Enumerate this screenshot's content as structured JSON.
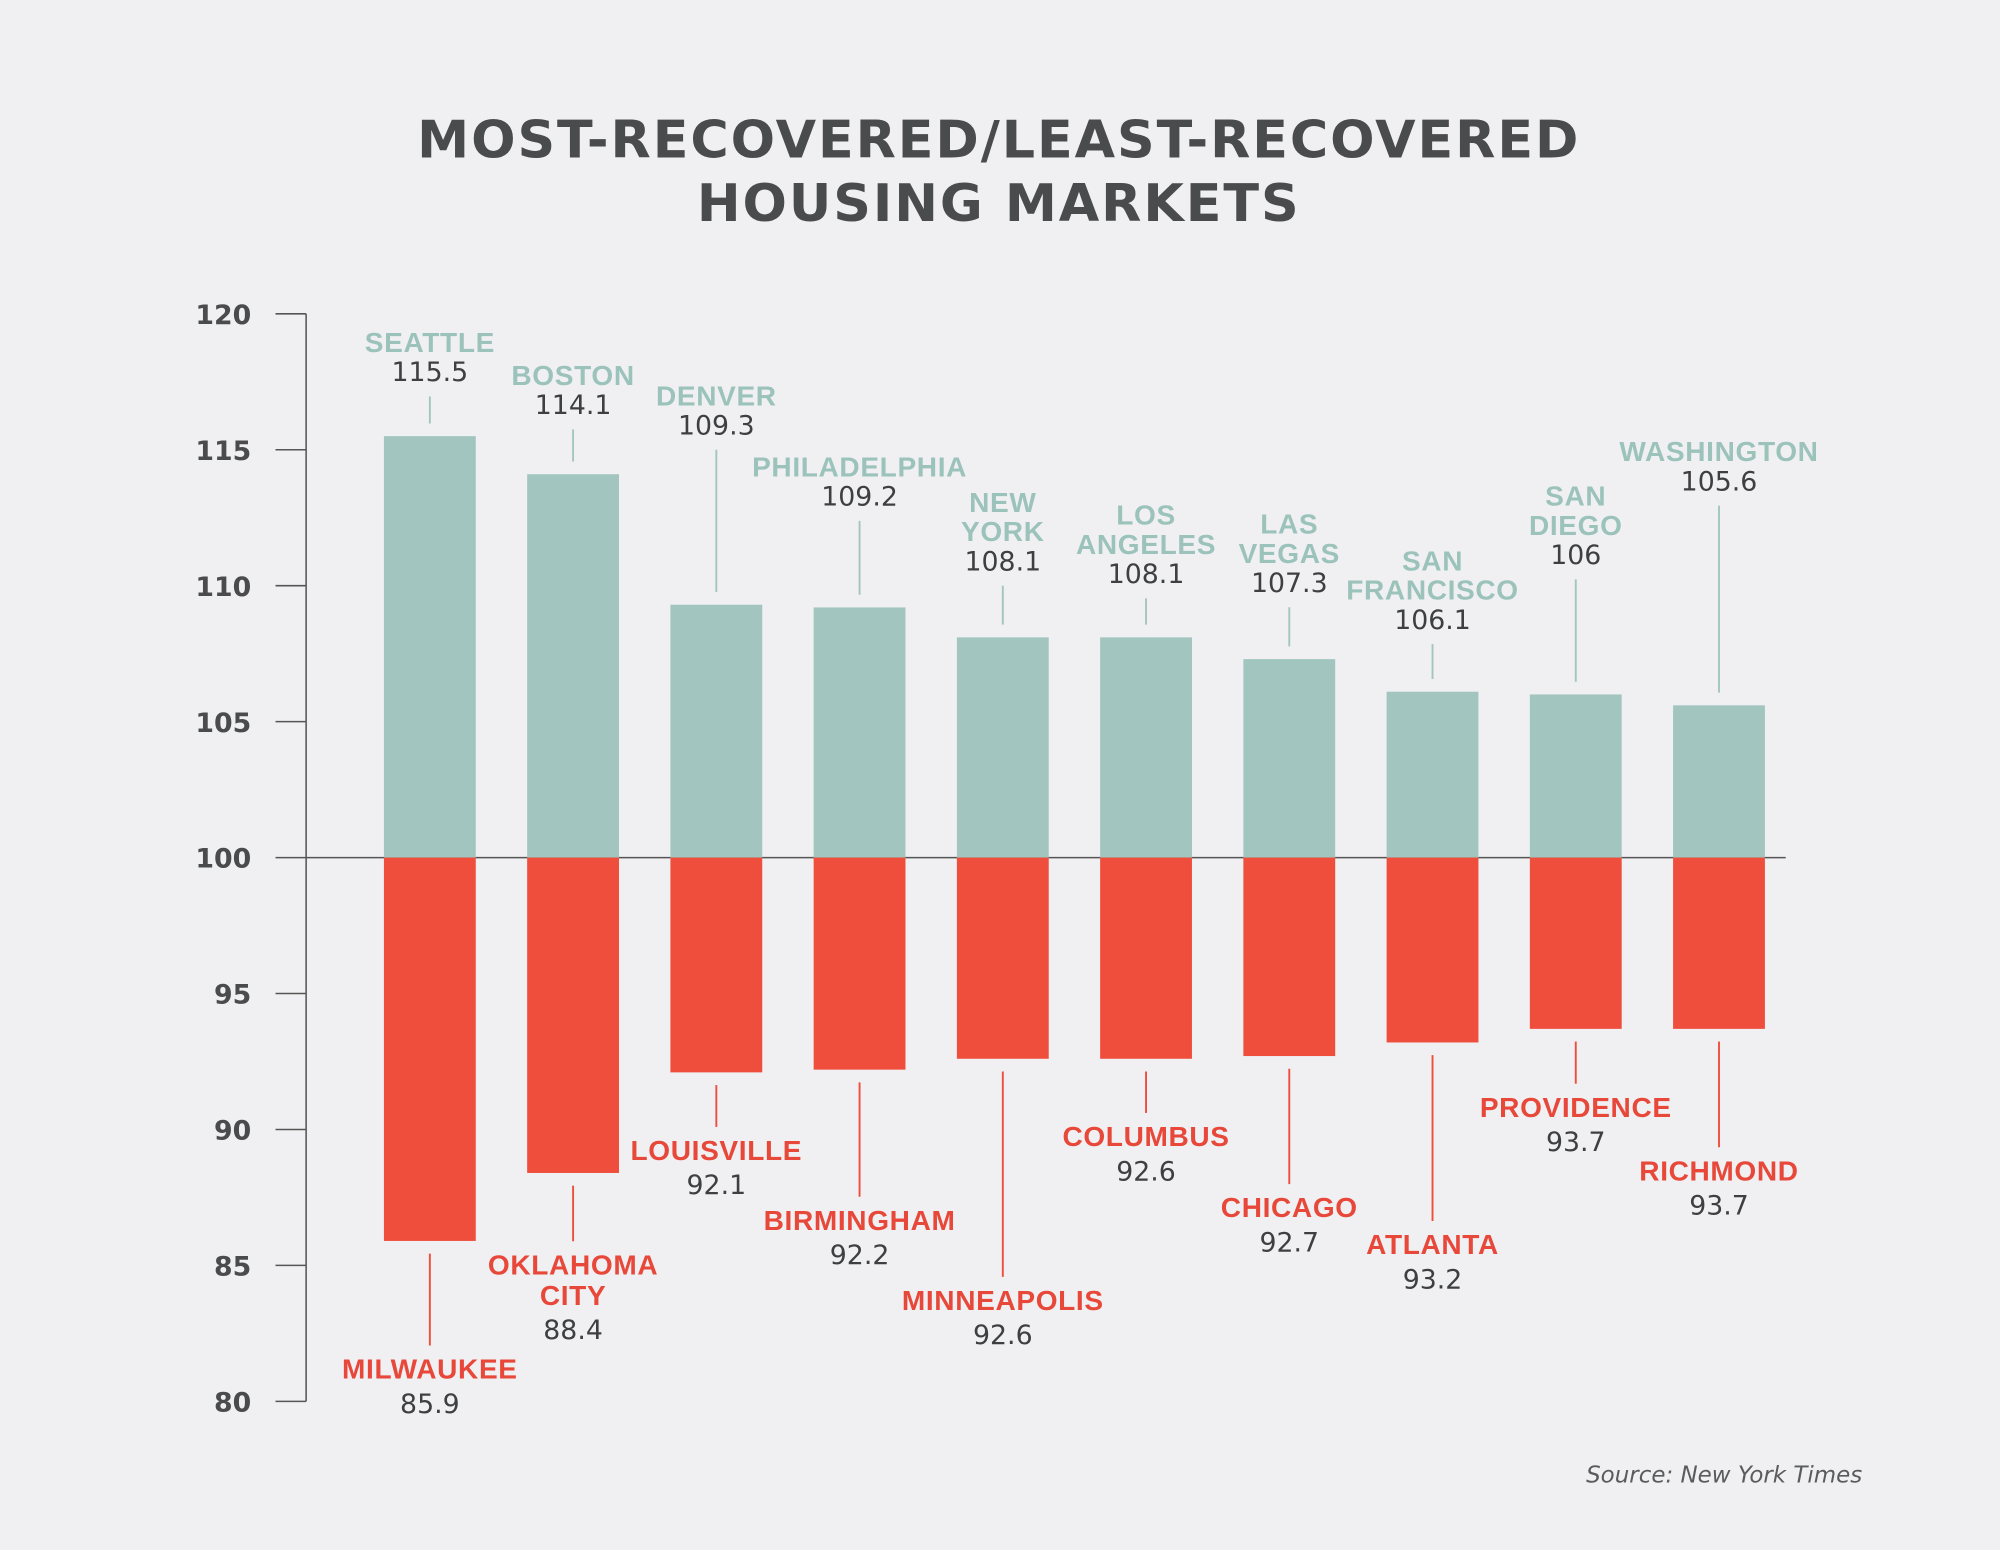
{
  "title_line1": "MOST-RECOVERED/LEAST-RECOVERED",
  "title_line2": "HOUSING MARKETS",
  "source": "Source: New York Times",
  "colors": {
    "background": "#f0f0f2",
    "most_recovered": "#a2c5bf",
    "least_recovered": "#ef4e3d",
    "most_label": "#9cc3bb",
    "least_label": "#e8483a",
    "text": "#4a4b4d"
  },
  "chart_data": {
    "type": "bar",
    "title": "MOST-RECOVERED/LEAST-RECOVERED HOUSING MARKETS",
    "baseline": 100,
    "ylim": [
      80,
      120
    ],
    "yticks": [
      120,
      115,
      110,
      105,
      100,
      95,
      90,
      85,
      80
    ],
    "grid": false,
    "most_recovered": [
      {
        "label_lines": [
          "SEATTLE"
        ],
        "value_label": "115.5",
        "value": 115.5
      },
      {
        "label_lines": [
          "BOSTON"
        ],
        "value_label": "114.1",
        "value": 114.1
      },
      {
        "label_lines": [
          "DENVER"
        ],
        "value_label": "109.3",
        "value": 109.3
      },
      {
        "label_lines": [
          "PHILADELPHIA"
        ],
        "value_label": "109.2",
        "value": 109.2
      },
      {
        "label_lines": [
          "NEW",
          "YORK"
        ],
        "value_label": "108.1",
        "value": 108.1
      },
      {
        "label_lines": [
          "LOS",
          "ANGELES"
        ],
        "value_label": "108.1",
        "value": 108.1
      },
      {
        "label_lines": [
          "LAS",
          "VEGAS"
        ],
        "value_label": "107.3",
        "value": 107.3
      },
      {
        "label_lines": [
          "SAN",
          "FRANCISCO"
        ],
        "value_label": "106.1",
        "value": 106.1
      },
      {
        "label_lines": [
          "SAN",
          "DIEGO"
        ],
        "value_label": "106",
        "value": 106
      },
      {
        "label_lines": [
          "WASHINGTON"
        ],
        "value_label": "105.6",
        "value": 105.6
      }
    ],
    "least_recovered": [
      {
        "label_lines": [
          "MILWAUKEE"
        ],
        "value_label": "85.9",
        "value": 85.9
      },
      {
        "label_lines": [
          "OKLAHOMA",
          "CITY"
        ],
        "value_label": "88.4",
        "value": 88.4
      },
      {
        "label_lines": [
          "LOUISVILLE"
        ],
        "value_label": "92.1",
        "value": 92.1
      },
      {
        "label_lines": [
          "BIRMINGHAM"
        ],
        "value_label": "92.2",
        "value": 92.2
      },
      {
        "label_lines": [
          "MINNEAPOLIS"
        ],
        "value_label": "92.6",
        "value": 92.6
      },
      {
        "label_lines": [
          "COLUMBUS"
        ],
        "value_label": "92.6",
        "value": 92.6
      },
      {
        "label_lines": [
          "CHICAGO"
        ],
        "value_label": "92.7",
        "value": 92.7
      },
      {
        "label_lines": [
          "ATLANTA"
        ],
        "value_label": "93.2",
        "value": 93.2
      },
      {
        "label_lines": [
          "PROVIDENCE"
        ],
        "value_label": "93.7",
        "value": 93.7
      },
      {
        "label_lines": [
          "RICHMOND"
        ],
        "value_label": "93.7",
        "value": 93.7
      }
    ]
  }
}
